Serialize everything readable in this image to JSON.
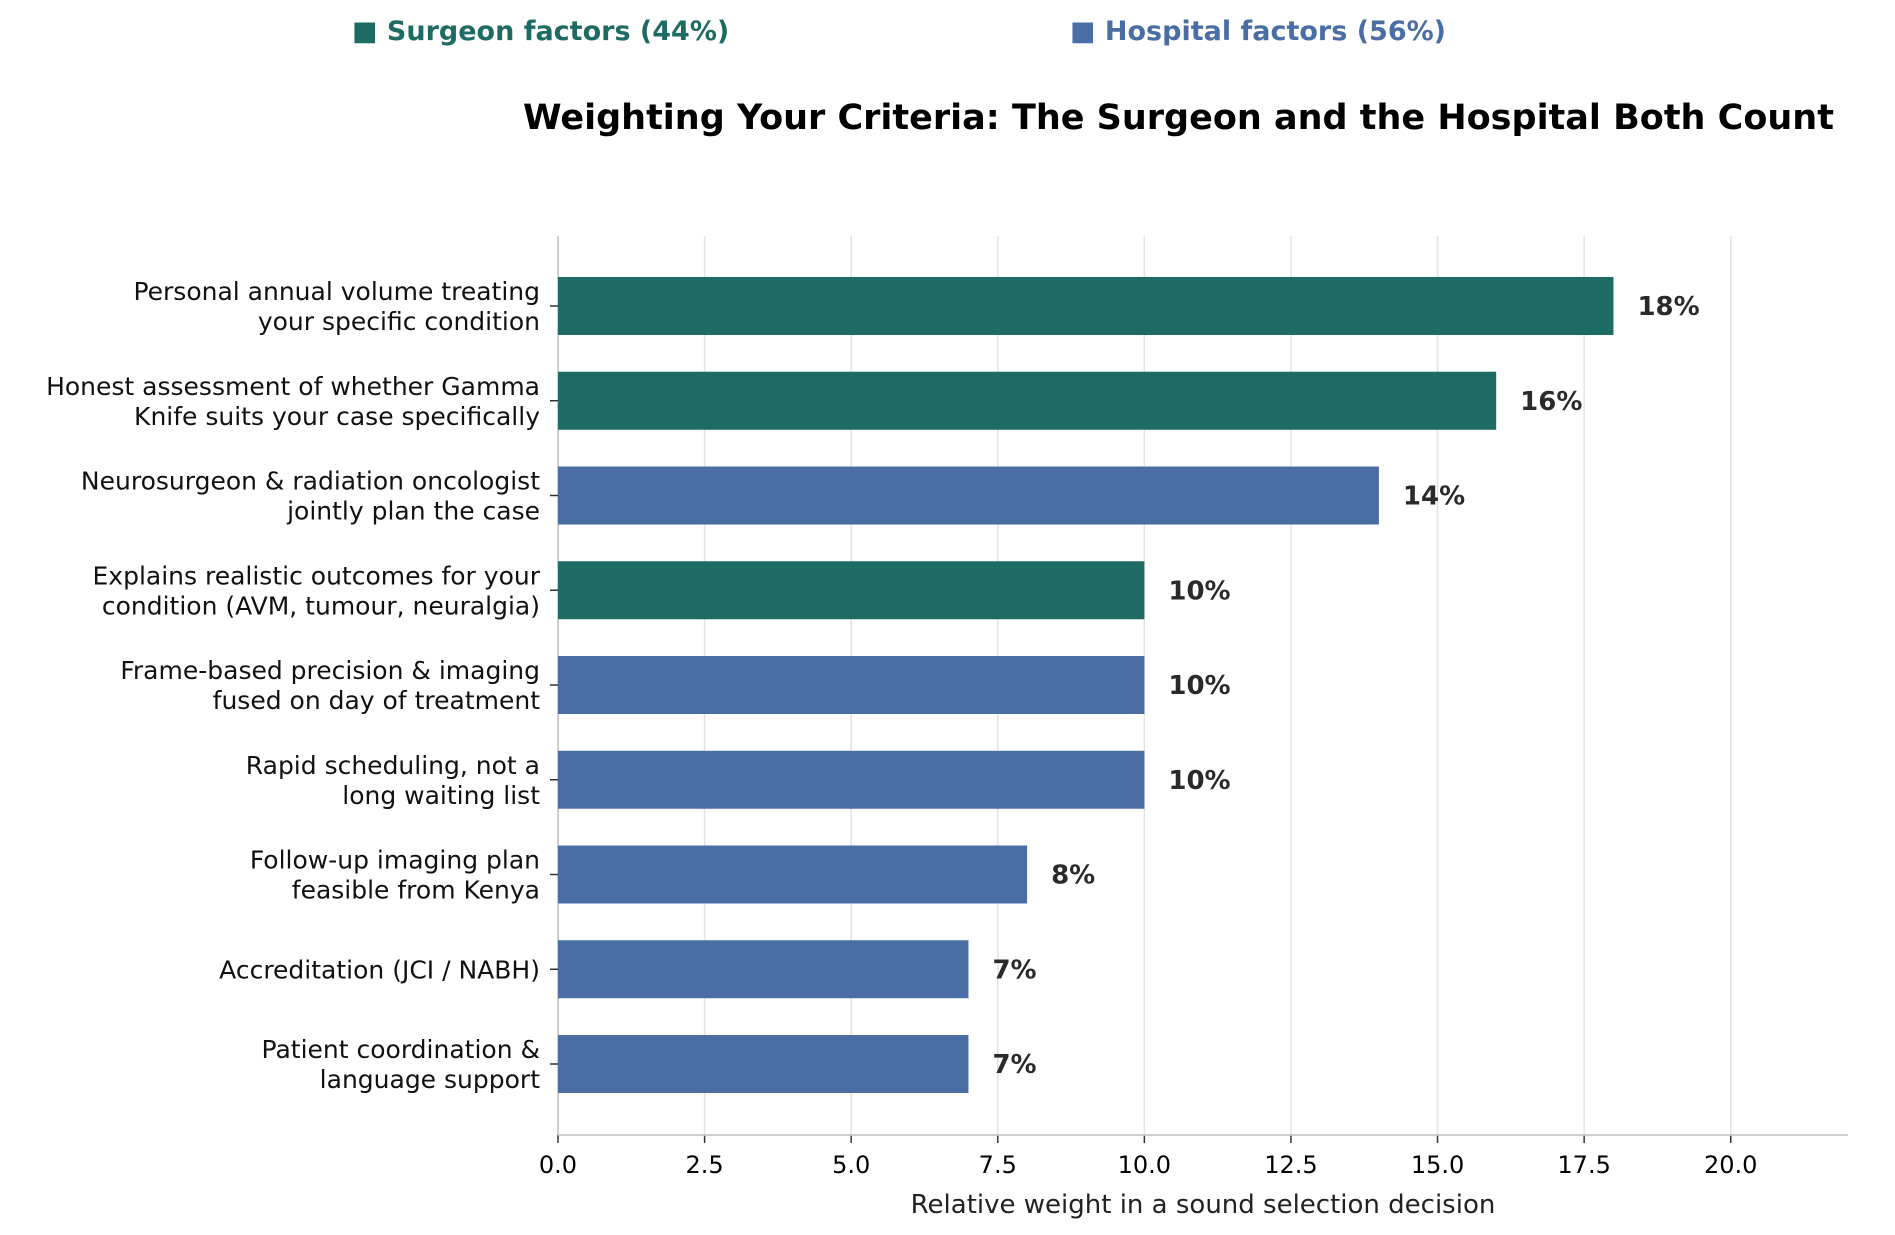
{
  "legend": {
    "surgeon": "■ Surgeon factors (44%)",
    "hospital": "■ Hospital factors (56%)"
  },
  "colors": {
    "surgeon": "#1d6b62",
    "hospital": "#4a6ea3"
  },
  "chart_data": {
    "type": "bar",
    "orientation": "horizontal",
    "title": "Weighting Your Criteria: The Surgeon and the Hospital Both Count",
    "xlabel": "Relative weight in a sound selection decision",
    "ylabel": "",
    "xlim": [
      0,
      22
    ],
    "x_ticks": [
      "0.0",
      "2.5",
      "5.0",
      "7.5",
      "10.0",
      "12.5",
      "15.0",
      "17.5",
      "20.0"
    ],
    "grid": "vertical",
    "legend_position": "top",
    "categories": [
      [
        "Personal annual volume treating",
        "your specific condition"
      ],
      [
        "Honest assessment of whether Gamma",
        "Knife suits your case specifically"
      ],
      [
        "Neurosurgeon & radiation oncologist",
        "jointly plan the case"
      ],
      [
        "Explains realistic outcomes for your",
        "condition (AVM, tumour, neuralgia)"
      ],
      [
        "Frame-based precision & imaging",
        "fused on day of treatment"
      ],
      [
        "Rapid scheduling, not a",
        "long waiting list"
      ],
      [
        "Follow-up imaging plan",
        "feasible from Kenya"
      ],
      [
        "Accreditation (JCI / NABH)"
      ],
      [
        "Patient coordination &",
        "language support"
      ]
    ],
    "values": [
      18,
      16,
      14,
      10,
      10,
      10,
      8,
      7,
      7
    ],
    "groups": [
      "surgeon",
      "surgeon",
      "hospital",
      "surgeon",
      "hospital",
      "hospital",
      "hospital",
      "hospital",
      "hospital"
    ],
    "data_labels": [
      "18%",
      "16%",
      "14%",
      "10%",
      "10%",
      "10%",
      "8%",
      "7%",
      "7%"
    ]
  }
}
